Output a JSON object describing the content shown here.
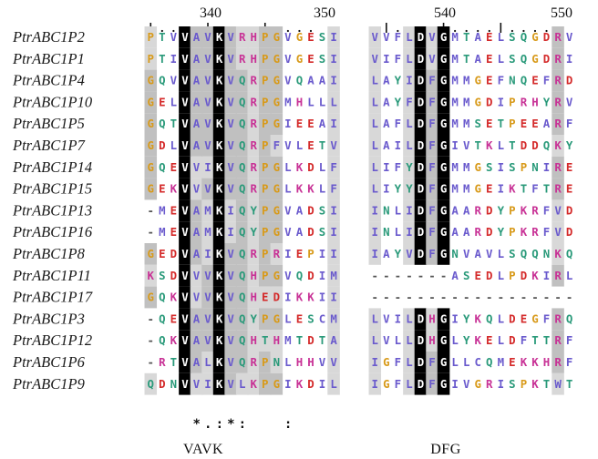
{
  "ruler_left": {
    "ticks": "|....|....|....",
    "number_label_1": "340",
    "number_label_2": "350"
  },
  "ruler_right": {
    "ticks": ".|....|....|....",
    "number_label_1": "540",
    "number_label_2": "550"
  },
  "sequences": [
    {
      "name": "PtrABC1P2",
      "left": "PTVVAVKVRHPGVGESI",
      "right": "VVFLDVGMTAELSQGDRV"
    },
    {
      "name": "PtrABC1P1",
      "left": "PTIVAVKVRHPGVGESI",
      "right": "VIFLDVGMTAELSQGDRI"
    },
    {
      "name": "PtrABC1P4",
      "left": "GQVVAVKVQRPGVQAAI",
      "right": "LAYIDFGMMGEFNQEFRD"
    },
    {
      "name": "PtrABC1P10",
      "left": "GELVAVKVQRPGMHLLL",
      "right": "LAYFDFGMMGDIPRHYRV"
    },
    {
      "name": "PtrABC1P5",
      "left": "GQTVAVKVQRPGIEEAI",
      "right": "LAFLDFGMMSETPEEARF"
    },
    {
      "name": "PtrABC1P7",
      "left": "GDLVAVKVQRPFVLETV",
      "right": "LAILDFGIVTKLTDDQKY"
    },
    {
      "name": "PtrABC1P14",
      "left": "GQEVVIKVQRPGLKDLF",
      "right": "LIFYDFGMMGSISPNIRE"
    },
    {
      "name": "PtrABC1P15",
      "left": "GEKVVVKVQRPGLKKLF",
      "right": "LIYYDFGMMGEIKTFTRE"
    },
    {
      "name": "PtrABC1P13",
      "left": "-MEVAMKIQYPGVADSI",
      "right": "INLIDFGAARDYPKRFVD"
    },
    {
      "name": "PtrABC1P16",
      "left": "-MEVAMKIQYPGVADSI",
      "right": "INLIDFGAARDYPKRFVD"
    },
    {
      "name": "PtrABC1P8",
      "left": "GEDVAIKVQRPRIEPII",
      "right": "IAYVDFGNVAVLSQQNKQ"
    },
    {
      "name": "PtrABC1P11",
      "left": "KSDVVVKVQHPGVQDIM",
      "right": "-------ASEDLPDKIRL"
    },
    {
      "name": "PtrABC1P17",
      "left": "GQKVVVKVQHEDIKKII",
      "right": "------------------"
    },
    {
      "name": "PtrABC1P3",
      "left": "-QEVAVKVQYPGLESCM",
      "right": "LVILDHGIYKQLDEGFRQ"
    },
    {
      "name": "PtrABC1P12",
      "left": "-QKVAVKVQHTHMTDTA",
      "right": "LVLLDHGLYKELDFTTRF"
    },
    {
      "name": "PtrABC1P6",
      "left": "-RTVALKVQRPNLHHVV",
      "right": "IGFLDFGLLCQMEKKHRF"
    },
    {
      "name": "PtrABC1P9",
      "left": "QDNVVIKVLKPGIKDIL",
      "right": "IGFLDFGIVGRISPKTWT"
    }
  ],
  "conservation": {
    "left": "    *.:*:   :"
  },
  "motifs": {
    "left": "VAVK",
    "right": "DFG"
  },
  "colors": {
    "black_block": "#000000",
    "grey_block": "#c0c0c0",
    "light_grey": "#d8d8d8",
    "hydrophobic": "#6a5acd",
    "acidic": "#d42a2a",
    "basic": "#c83296",
    "polar": "#2a9a7a",
    "glycine": "#d89a1a"
  }
}
